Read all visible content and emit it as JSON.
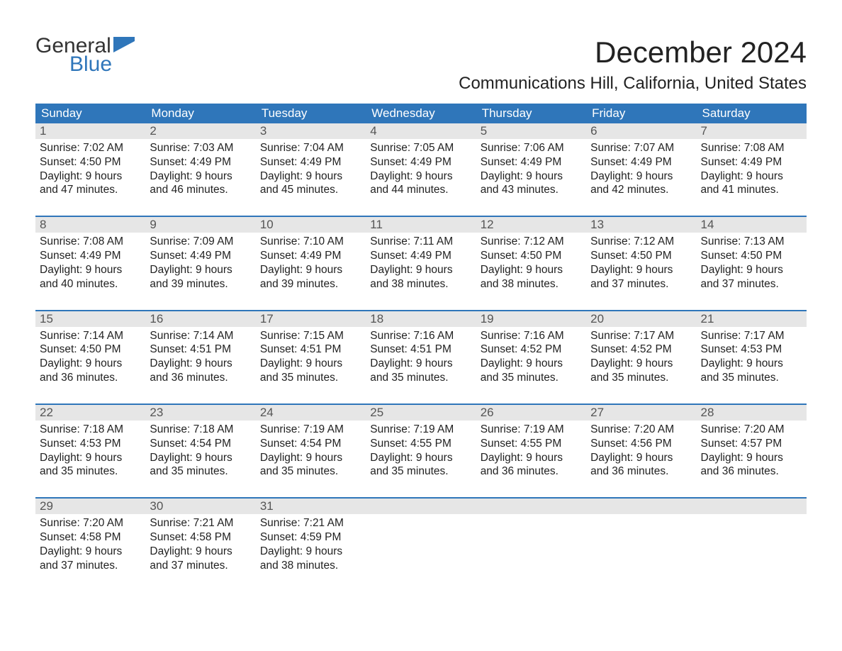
{
  "brand": {
    "part1": "General",
    "part2": "Blue"
  },
  "title": "December 2024",
  "location": "Communications Hill, California, United States",
  "colors": {
    "header_bg": "#2f76ba",
    "header_text": "#ffffff",
    "daynum_bg": "#e6e6e6",
    "daynum_text": "#555555",
    "body_text": "#222222",
    "logo_accent": "#2f76ba",
    "page_bg": "#ffffff"
  },
  "day_headers": [
    "Sunday",
    "Monday",
    "Tuesday",
    "Wednesday",
    "Thursday",
    "Friday",
    "Saturday"
  ],
  "weeks": [
    [
      {
        "n": "1",
        "sr": "Sunrise: 7:02 AM",
        "ss": "Sunset: 4:50 PM",
        "d1": "Daylight: 9 hours",
        "d2": "and 47 minutes."
      },
      {
        "n": "2",
        "sr": "Sunrise: 7:03 AM",
        "ss": "Sunset: 4:49 PM",
        "d1": "Daylight: 9 hours",
        "d2": "and 46 minutes."
      },
      {
        "n": "3",
        "sr": "Sunrise: 7:04 AM",
        "ss": "Sunset: 4:49 PM",
        "d1": "Daylight: 9 hours",
        "d2": "and 45 minutes."
      },
      {
        "n": "4",
        "sr": "Sunrise: 7:05 AM",
        "ss": "Sunset: 4:49 PM",
        "d1": "Daylight: 9 hours",
        "d2": "and 44 minutes."
      },
      {
        "n": "5",
        "sr": "Sunrise: 7:06 AM",
        "ss": "Sunset: 4:49 PM",
        "d1": "Daylight: 9 hours",
        "d2": "and 43 minutes."
      },
      {
        "n": "6",
        "sr": "Sunrise: 7:07 AM",
        "ss": "Sunset: 4:49 PM",
        "d1": "Daylight: 9 hours",
        "d2": "and 42 minutes."
      },
      {
        "n": "7",
        "sr": "Sunrise: 7:08 AM",
        "ss": "Sunset: 4:49 PM",
        "d1": "Daylight: 9 hours",
        "d2": "and 41 minutes."
      }
    ],
    [
      {
        "n": "8",
        "sr": "Sunrise: 7:08 AM",
        "ss": "Sunset: 4:49 PM",
        "d1": "Daylight: 9 hours",
        "d2": "and 40 minutes."
      },
      {
        "n": "9",
        "sr": "Sunrise: 7:09 AM",
        "ss": "Sunset: 4:49 PM",
        "d1": "Daylight: 9 hours",
        "d2": "and 39 minutes."
      },
      {
        "n": "10",
        "sr": "Sunrise: 7:10 AM",
        "ss": "Sunset: 4:49 PM",
        "d1": "Daylight: 9 hours",
        "d2": "and 39 minutes."
      },
      {
        "n": "11",
        "sr": "Sunrise: 7:11 AM",
        "ss": "Sunset: 4:49 PM",
        "d1": "Daylight: 9 hours",
        "d2": "and 38 minutes."
      },
      {
        "n": "12",
        "sr": "Sunrise: 7:12 AM",
        "ss": "Sunset: 4:50 PM",
        "d1": "Daylight: 9 hours",
        "d2": "and 38 minutes."
      },
      {
        "n": "13",
        "sr": "Sunrise: 7:12 AM",
        "ss": "Sunset: 4:50 PM",
        "d1": "Daylight: 9 hours",
        "d2": "and 37 minutes."
      },
      {
        "n": "14",
        "sr": "Sunrise: 7:13 AM",
        "ss": "Sunset: 4:50 PM",
        "d1": "Daylight: 9 hours",
        "d2": "and 37 minutes."
      }
    ],
    [
      {
        "n": "15",
        "sr": "Sunrise: 7:14 AM",
        "ss": "Sunset: 4:50 PM",
        "d1": "Daylight: 9 hours",
        "d2": "and 36 minutes."
      },
      {
        "n": "16",
        "sr": "Sunrise: 7:14 AM",
        "ss": "Sunset: 4:51 PM",
        "d1": "Daylight: 9 hours",
        "d2": "and 36 minutes."
      },
      {
        "n": "17",
        "sr": "Sunrise: 7:15 AM",
        "ss": "Sunset: 4:51 PM",
        "d1": "Daylight: 9 hours",
        "d2": "and 35 minutes."
      },
      {
        "n": "18",
        "sr": "Sunrise: 7:16 AM",
        "ss": "Sunset: 4:51 PM",
        "d1": "Daylight: 9 hours",
        "d2": "and 35 minutes."
      },
      {
        "n": "19",
        "sr": "Sunrise: 7:16 AM",
        "ss": "Sunset: 4:52 PM",
        "d1": "Daylight: 9 hours",
        "d2": "and 35 minutes."
      },
      {
        "n": "20",
        "sr": "Sunrise: 7:17 AM",
        "ss": "Sunset: 4:52 PM",
        "d1": "Daylight: 9 hours",
        "d2": "and 35 minutes."
      },
      {
        "n": "21",
        "sr": "Sunrise: 7:17 AM",
        "ss": "Sunset: 4:53 PM",
        "d1": "Daylight: 9 hours",
        "d2": "and 35 minutes."
      }
    ],
    [
      {
        "n": "22",
        "sr": "Sunrise: 7:18 AM",
        "ss": "Sunset: 4:53 PM",
        "d1": "Daylight: 9 hours",
        "d2": "and 35 minutes."
      },
      {
        "n": "23",
        "sr": "Sunrise: 7:18 AM",
        "ss": "Sunset: 4:54 PM",
        "d1": "Daylight: 9 hours",
        "d2": "and 35 minutes."
      },
      {
        "n": "24",
        "sr": "Sunrise: 7:19 AM",
        "ss": "Sunset: 4:54 PM",
        "d1": "Daylight: 9 hours",
        "d2": "and 35 minutes."
      },
      {
        "n": "25",
        "sr": "Sunrise: 7:19 AM",
        "ss": "Sunset: 4:55 PM",
        "d1": "Daylight: 9 hours",
        "d2": "and 35 minutes."
      },
      {
        "n": "26",
        "sr": "Sunrise: 7:19 AM",
        "ss": "Sunset: 4:55 PM",
        "d1": "Daylight: 9 hours",
        "d2": "and 36 minutes."
      },
      {
        "n": "27",
        "sr": "Sunrise: 7:20 AM",
        "ss": "Sunset: 4:56 PM",
        "d1": "Daylight: 9 hours",
        "d2": "and 36 minutes."
      },
      {
        "n": "28",
        "sr": "Sunrise: 7:20 AM",
        "ss": "Sunset: 4:57 PM",
        "d1": "Daylight: 9 hours",
        "d2": "and 36 minutes."
      }
    ],
    [
      {
        "n": "29",
        "sr": "Sunrise: 7:20 AM",
        "ss": "Sunset: 4:58 PM",
        "d1": "Daylight: 9 hours",
        "d2": "and 37 minutes."
      },
      {
        "n": "30",
        "sr": "Sunrise: 7:21 AM",
        "ss": "Sunset: 4:58 PM",
        "d1": "Daylight: 9 hours",
        "d2": "and 37 minutes."
      },
      {
        "n": "31",
        "sr": "Sunrise: 7:21 AM",
        "ss": "Sunset: 4:59 PM",
        "d1": "Daylight: 9 hours",
        "d2": "and 38 minutes."
      },
      null,
      null,
      null,
      null
    ]
  ]
}
